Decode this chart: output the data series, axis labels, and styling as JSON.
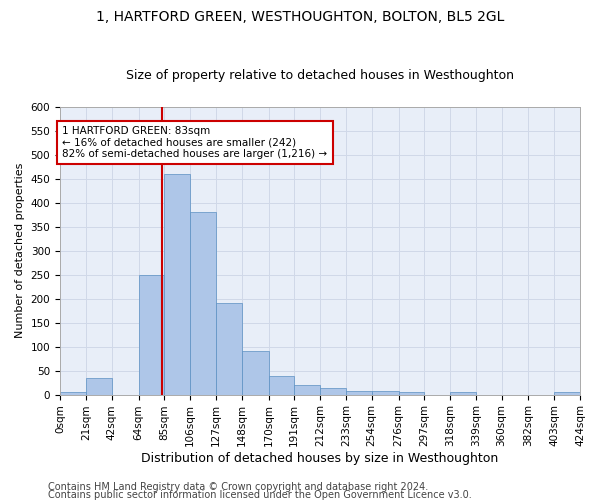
{
  "title": "1, HARTFORD GREEN, WESTHOUGHTON, BOLTON, BL5 2GL",
  "subtitle": "Size of property relative to detached houses in Westhoughton",
  "xlabel": "Distribution of detached houses by size in Westhoughton",
  "ylabel": "Number of detached properties",
  "bin_labels": [
    "0sqm",
    "21sqm",
    "42sqm",
    "64sqm",
    "85sqm",
    "106sqm",
    "127sqm",
    "148sqm",
    "170sqm",
    "191sqm",
    "212sqm",
    "233sqm",
    "254sqm",
    "276sqm",
    "297sqm",
    "318sqm",
    "339sqm",
    "360sqm",
    "382sqm",
    "403sqm",
    "424sqm"
  ],
  "bin_edges": [
    0,
    21,
    42,
    64,
    85,
    106,
    127,
    148,
    170,
    191,
    212,
    233,
    254,
    276,
    297,
    318,
    339,
    360,
    382,
    403,
    424
  ],
  "bar_heights": [
    5,
    35,
    0,
    250,
    460,
    380,
    190,
    90,
    38,
    20,
    13,
    7,
    7,
    6,
    0,
    6,
    0,
    0,
    0,
    5
  ],
  "bar_color": "#aec6e8",
  "bar_edge_color": "#5a8fc2",
  "property_line_x": 83,
  "property_line_color": "#cc0000",
  "annotation_line1": "1 HARTFORD GREEN: 83sqm",
  "annotation_line2": "← 16% of detached houses are smaller (242)",
  "annotation_line3": "82% of semi-detached houses are larger (1,216) →",
  "annotation_box_color": "#cc0000",
  "annotation_text_color": "#000000",
  "ylim": [
    0,
    600
  ],
  "yticks": [
    0,
    50,
    100,
    150,
    200,
    250,
    300,
    350,
    400,
    450,
    500,
    550,
    600
  ],
  "grid_color": "#d0d8e8",
  "background_color": "#e8eef8",
  "footer1": "Contains HM Land Registry data © Crown copyright and database right 2024.",
  "footer2": "Contains public sector information licensed under the Open Government Licence v3.0.",
  "title_fontsize": 10,
  "subtitle_fontsize": 9,
  "xlabel_fontsize": 9,
  "ylabel_fontsize": 8,
  "tick_fontsize": 7.5,
  "footer_fontsize": 7
}
